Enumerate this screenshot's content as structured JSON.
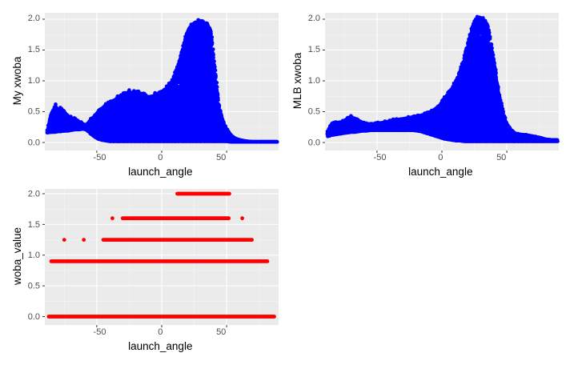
{
  "chart_data": [
    {
      "type": "scatter",
      "xlabel": "launch_angle",
      "ylabel": "My xwoba",
      "xlim": [
        -90,
        90
      ],
      "ylim": [
        0,
        2.0
      ],
      "x_ticks": [
        "-50",
        "0",
        "50"
      ],
      "y_ticks": [
        "0.0",
        "0.5",
        "1.0",
        "1.5",
        "2.0"
      ],
      "grid": true,
      "point_color": "#0000FF",
      "series": [
        {
          "envelope": {
            "x": [
              -88,
              -85,
              -82,
              -80,
              -78,
              -75,
              -72,
              -70,
              -67,
              -64,
              -61,
              -58,
              -55,
              -52,
              -49,
              -46,
              -43,
              -40,
              -37,
              -34,
              -31,
              -28,
              -25,
              -22,
              -19,
              -16,
              -13,
              -10,
              -7,
              -4,
              -1,
              2,
              5,
              8,
              11,
              14,
              17,
              20,
              23,
              26,
              29,
              32,
              35,
              38,
              41,
              44,
              47,
              50,
              53,
              56,
              60,
              65,
              70,
              75,
              80,
              85,
              89
            ],
            "upper": [
              0.2,
              0.45,
              0.6,
              0.52,
              0.55,
              0.5,
              0.42,
              0.4,
              0.38,
              0.34,
              0.3,
              0.28,
              0.36,
              0.42,
              0.5,
              0.55,
              0.6,
              0.64,
              0.68,
              0.72,
              0.75,
              0.8,
              0.82,
              0.8,
              0.83,
              0.78,
              0.76,
              0.74,
              0.75,
              0.78,
              0.82,
              0.84,
              0.9,
              1.0,
              1.15,
              1.35,
              1.6,
              1.8,
              1.9,
              1.95,
              1.95,
              1.95,
              1.93,
              1.8,
              1.2,
              0.6,
              0.35,
              0.22,
              0.12,
              0.07,
              0.04,
              0.02,
              0.01,
              0.01,
              0.01,
              0.01,
              0.01
            ],
            "lower": [
              0.16,
              0.17,
              0.17,
              0.18,
              0.18,
              0.19,
              0.19,
              0.2,
              0.21,
              0.21,
              0.22,
              0.21,
              0.15,
              0.1,
              0.06,
              0.04,
              0.03,
              0.02,
              0.02,
              0.02,
              0.02,
              0.02,
              0.02,
              0.02,
              0.02,
              0.02,
              0.02,
              0.02,
              0.02,
              0.02,
              0.02,
              0.02,
              0.02,
              0.02,
              0.02,
              0.02,
              0.02,
              0.02,
              0.02,
              0.02,
              0.02,
              0.02,
              0.02,
              0.02,
              0.02,
              0.02,
              0.02,
              0.02,
              0.01,
              0.01,
              0.01,
              0.01,
              0.01,
              0.01,
              0.01,
              0.01,
              0.01
            ]
          }
        }
      ]
    },
    {
      "type": "scatter",
      "xlabel": "launch_angle",
      "ylabel": "MLB xwoba",
      "xlim": [
        -90,
        90
      ],
      "ylim": [
        0,
        2.0
      ],
      "x_ticks": [
        "-50",
        "0",
        "50"
      ],
      "y_ticks": [
        "0.0",
        "0.5",
        "1.0",
        "1.5",
        "2.0"
      ],
      "grid": true,
      "point_color": "#0000FF",
      "series": [
        {
          "envelope": {
            "x": [
              -88,
              -85,
              -82,
              -79,
              -76,
              -73,
              -70,
              -67,
              -64,
              -61,
              -58,
              -55,
              -52,
              -49,
              -46,
              -43,
              -40,
              -37,
              -34,
              -31,
              -28,
              -25,
              -22,
              -19,
              -16,
              -13,
              -10,
              -7,
              -4,
              -1,
              2,
              5,
              8,
              11,
              14,
              17,
              20,
              23,
              26,
              29,
              32,
              35,
              38,
              41,
              44,
              47,
              50,
              53,
              56,
              60,
              65,
              70,
              75,
              80,
              85,
              89
            ],
            "upper": [
              0.18,
              0.3,
              0.33,
              0.32,
              0.34,
              0.38,
              0.42,
              0.38,
              0.35,
              0.32,
              0.3,
              0.3,
              0.3,
              0.31,
              0.32,
              0.33,
              0.34,
              0.36,
              0.37,
              0.38,
              0.39,
              0.4,
              0.41,
              0.43,
              0.44,
              0.46,
              0.48,
              0.52,
              0.56,
              0.62,
              0.7,
              0.78,
              0.88,
              1.0,
              1.15,
              1.35,
              1.6,
              1.85,
              2.0,
              2.02,
              2.0,
              1.9,
              1.6,
              1.2,
              0.8,
              0.5,
              0.3,
              0.2,
              0.15,
              0.13,
              0.12,
              0.1,
              0.08,
              0.05,
              0.04,
              0.04
            ],
            "lower": [
              0.1,
              0.12,
              0.13,
              0.14,
              0.15,
              0.16,
              0.17,
              0.17,
              0.18,
              0.19,
              0.19,
              0.2,
              0.2,
              0.2,
              0.2,
              0.2,
              0.2,
              0.2,
              0.2,
              0.2,
              0.2,
              0.2,
              0.2,
              0.19,
              0.18,
              0.16,
              0.14,
              0.12,
              0.1,
              0.08,
              0.06,
              0.05,
              0.04,
              0.03,
              0.03,
              0.02,
              0.02,
              0.02,
              0.02,
              0.02,
              0.02,
              0.02,
              0.02,
              0.02,
              0.02,
              0.02,
              0.02,
              0.02,
              0.02,
              0.02,
              0.02,
              0.02,
              0.02,
              0.02,
              0.02,
              0.02
            ]
          }
        }
      ]
    },
    {
      "type": "scatter",
      "xlabel": "launch_angle",
      "ylabel": "woba_value",
      "xlim": [
        -90,
        90
      ],
      "ylim": [
        0,
        2.0
      ],
      "x_ticks": [
        "-50",
        "0",
        "50"
      ],
      "y_ticks": [
        "0.0",
        "0.5",
        "1.0",
        "1.5",
        "2.0"
      ],
      "grid": true,
      "point_color": "#FF0000",
      "series": [
        {
          "strips": [
            {
              "y": 0.0,
              "x_range": [
                -87,
                87
              ]
            },
            {
              "y": 0.9,
              "x_range": [
                -85,
                82
              ]
            },
            {
              "y": 1.25,
              "x_range": [
                -45,
                70
              ]
            },
            {
              "y": 1.6,
              "x_range": [
                -30,
                52
              ]
            },
            {
              "y": 2.0,
              "x_range": [
                12,
                52
              ]
            }
          ],
          "isolated_points": [
            {
              "x": -75,
              "y": 1.25
            },
            {
              "x": -60,
              "y": 1.25
            },
            {
              "x": -38,
              "y": 1.6
            },
            {
              "x": 62,
              "y": 1.6
            }
          ]
        }
      ]
    }
  ]
}
